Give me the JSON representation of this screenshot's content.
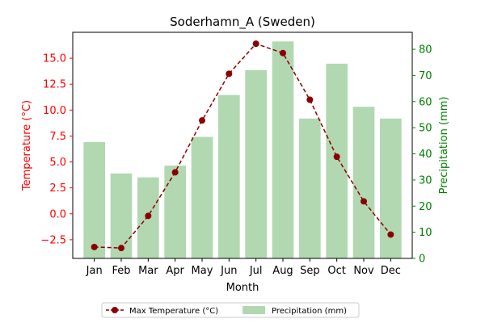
{
  "chart_data": {
    "type": "bar+line",
    "title": "Soderhamn_A (Sweden)",
    "xlabel": "Month",
    "ylabel_left": "Temperature (°C)",
    "ylabel_right": "Precipitation (mm)",
    "categories": [
      "Jan",
      "Feb",
      "Mar",
      "Apr",
      "May",
      "Jun",
      "Jul",
      "Aug",
      "Sep",
      "Oct",
      "Nov",
      "Dec"
    ],
    "temp_ticks": [
      "−2.5",
      "0.0",
      "2.5",
      "5.0",
      "7.5",
      "10.0",
      "12.5",
      "15.0"
    ],
    "precip_ticks": [
      "0",
      "10",
      "20",
      "30",
      "40",
      "50",
      "60",
      "70",
      "80"
    ],
    "temp_range": [
      -4.3,
      17.5
    ],
    "precip_range": [
      0,
      86.5
    ],
    "series": [
      {
        "name": "Max Temperature (°C)",
        "kind": "line",
        "color": "#8b0000",
        "values": [
          -3.2,
          -3.3,
          -0.2,
          4.0,
          9.0,
          13.5,
          16.4,
          15.5,
          11.0,
          5.5,
          1.2,
          -2.0
        ]
      },
      {
        "name": "Precipitation (mm)",
        "kind": "bar",
        "color": "#b2d8b2",
        "values": [
          44.5,
          32.5,
          31.0,
          35.5,
          46.5,
          62.5,
          72.0,
          83.0,
          53.5,
          74.5,
          58.0,
          53.5
        ]
      }
    ],
    "left_axis_color": "#ff0000",
    "right_axis_color": "#008000",
    "legend_position": "bottom-center"
  }
}
